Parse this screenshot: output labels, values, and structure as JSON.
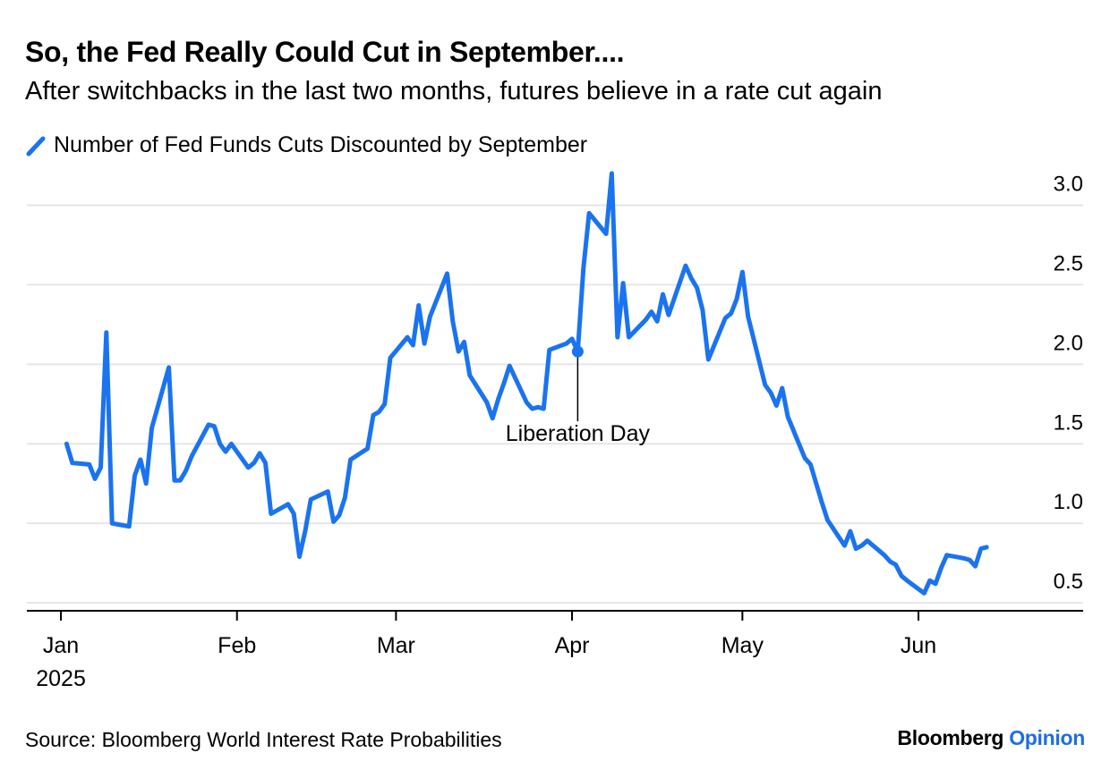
{
  "header": {
    "title": "So, the Fed Really Could Cut in September....",
    "subtitle": "After switchbacks in the last two months, futures believe in a rate cut again"
  },
  "legend": {
    "label": "Number of Fed Funds Cuts Discounted by September"
  },
  "footer": {
    "source": "Source: Bloomberg World Interest Rate Probabilities",
    "brand_name": "Bloomberg",
    "brand_suffix": "Opinion"
  },
  "colors": {
    "line": "#1a73f0",
    "grid": "#e6e6e6",
    "axis": "#000000",
    "brand_accent": "#1e6fe0"
  },
  "chart_data": {
    "type": "line",
    "series": [
      {
        "name": "Number of Fed Funds Cuts Discounted by September",
        "points": [
          [
            "2025-01-02",
            1.5
          ],
          [
            "2025-01-03",
            1.38
          ],
          [
            "2025-01-06",
            1.37
          ],
          [
            "2025-01-07",
            1.28
          ],
          [
            "2025-01-08",
            1.35
          ],
          [
            "2025-01-09",
            2.2
          ],
          [
            "2025-01-10",
            1.0
          ],
          [
            "2025-01-13",
            0.98
          ],
          [
            "2025-01-14",
            1.3
          ],
          [
            "2025-01-15",
            1.4
          ],
          [
            "2025-01-16",
            1.25
          ],
          [
            "2025-01-17",
            1.6
          ],
          [
            "2025-01-20",
            1.98
          ],
          [
            "2025-01-21",
            1.27
          ],
          [
            "2025-01-22",
            1.27
          ],
          [
            "2025-01-23",
            1.33
          ],
          [
            "2025-01-24",
            1.42
          ],
          [
            "2025-01-27",
            1.62
          ],
          [
            "2025-01-28",
            1.61
          ],
          [
            "2025-01-29",
            1.5
          ],
          [
            "2025-01-30",
            1.45
          ],
          [
            "2025-01-31",
            1.5
          ],
          [
            "2025-02-03",
            1.35
          ],
          [
            "2025-02-04",
            1.38
          ],
          [
            "2025-02-05",
            1.44
          ],
          [
            "2025-02-06",
            1.38
          ],
          [
            "2025-02-07",
            1.06
          ],
          [
            "2025-02-10",
            1.12
          ],
          [
            "2025-02-11",
            1.06
          ],
          [
            "2025-02-12",
            0.79
          ],
          [
            "2025-02-13",
            0.95
          ],
          [
            "2025-02-14",
            1.15
          ],
          [
            "2025-02-17",
            1.2
          ],
          [
            "2025-02-18",
            1.01
          ],
          [
            "2025-02-19",
            1.05
          ],
          [
            "2025-02-20",
            1.16
          ],
          [
            "2025-02-21",
            1.4
          ],
          [
            "2025-02-24",
            1.47
          ],
          [
            "2025-02-25",
            1.68
          ],
          [
            "2025-02-26",
            1.7
          ],
          [
            "2025-02-27",
            1.75
          ],
          [
            "2025-02-28",
            2.04
          ],
          [
            "2025-03-03",
            2.17
          ],
          [
            "2025-03-04",
            2.12
          ],
          [
            "2025-03-05",
            2.37
          ],
          [
            "2025-03-06",
            2.13
          ],
          [
            "2025-03-07",
            2.3
          ],
          [
            "2025-03-10",
            2.57
          ],
          [
            "2025-03-11",
            2.27
          ],
          [
            "2025-03-12",
            2.08
          ],
          [
            "2025-03-13",
            2.14
          ],
          [
            "2025-03-14",
            1.93
          ],
          [
            "2025-03-17",
            1.76
          ],
          [
            "2025-03-18",
            1.66
          ],
          [
            "2025-03-19",
            1.78
          ],
          [
            "2025-03-20",
            1.88
          ],
          [
            "2025-03-21",
            1.99
          ],
          [
            "2025-03-24",
            1.76
          ],
          [
            "2025-03-25",
            1.72
          ],
          [
            "2025-03-26",
            1.73
          ],
          [
            "2025-03-27",
            1.72
          ],
          [
            "2025-03-28",
            2.09
          ],
          [
            "2025-03-31",
            2.13
          ],
          [
            "2025-04-01",
            2.16
          ],
          [
            "2025-04-02",
            2.08
          ],
          [
            "2025-04-03",
            2.6
          ],
          [
            "2025-04-04",
            2.95
          ],
          [
            "2025-04-07",
            2.82
          ],
          [
            "2025-04-08",
            3.2
          ],
          [
            "2025-04-09",
            2.17
          ],
          [
            "2025-04-10",
            2.51
          ],
          [
            "2025-04-11",
            2.17
          ],
          [
            "2025-04-14",
            2.28
          ],
          [
            "2025-04-15",
            2.33
          ],
          [
            "2025-04-16",
            2.27
          ],
          [
            "2025-04-17",
            2.44
          ],
          [
            "2025-04-18",
            2.31
          ],
          [
            "2025-04-21",
            2.62
          ],
          [
            "2025-04-22",
            2.54
          ],
          [
            "2025-04-23",
            2.48
          ],
          [
            "2025-04-24",
            2.34
          ],
          [
            "2025-04-25",
            2.03
          ],
          [
            "2025-04-28",
            2.29
          ],
          [
            "2025-04-29",
            2.32
          ],
          [
            "2025-04-30",
            2.41
          ],
          [
            "2025-05-01",
            2.58
          ],
          [
            "2025-05-02",
            2.3
          ],
          [
            "2025-05-05",
            1.87
          ],
          [
            "2025-05-06",
            1.82
          ],
          [
            "2025-05-07",
            1.74
          ],
          [
            "2025-05-08",
            1.85
          ],
          [
            "2025-05-09",
            1.67
          ],
          [
            "2025-05-12",
            1.41
          ],
          [
            "2025-05-13",
            1.37
          ],
          [
            "2025-05-14",
            1.25
          ],
          [
            "2025-05-15",
            1.13
          ],
          [
            "2025-05-16",
            1.02
          ],
          [
            "2025-05-19",
            0.86
          ],
          [
            "2025-05-20",
            0.95
          ],
          [
            "2025-05-21",
            0.84
          ],
          [
            "2025-05-22",
            0.86
          ],
          [
            "2025-05-23",
            0.89
          ],
          [
            "2025-05-26",
            0.8
          ],
          [
            "2025-05-27",
            0.76
          ],
          [
            "2025-05-28",
            0.74
          ],
          [
            "2025-05-29",
            0.67
          ],
          [
            "2025-05-30",
            0.64
          ],
          [
            "2025-06-02",
            0.56
          ],
          [
            "2025-06-03",
            0.64
          ],
          [
            "2025-06-04",
            0.62
          ],
          [
            "2025-06-05",
            0.72
          ],
          [
            "2025-06-06",
            0.8
          ],
          [
            "2025-06-09",
            0.78
          ],
          [
            "2025-06-10",
            0.77
          ],
          [
            "2025-06-11",
            0.73
          ],
          [
            "2025-06-12",
            0.84
          ],
          [
            "2025-06-13",
            0.85
          ]
        ]
      }
    ],
    "x_ticks": [
      {
        "date": "2025-01-01",
        "label": "Jan",
        "sublabel": "2025"
      },
      {
        "date": "2025-02-01",
        "label": "Feb"
      },
      {
        "date": "2025-03-01",
        "label": "Mar"
      },
      {
        "date": "2025-04-01",
        "label": "Apr"
      },
      {
        "date": "2025-05-01",
        "label": "May"
      },
      {
        "date": "2025-06-01",
        "label": "Jun"
      }
    ],
    "xlim": [
      "2024-12-26",
      "2025-06-30"
    ],
    "y_ticks": [
      {
        "value": 0.5,
        "label": "0.5"
      },
      {
        "value": 1.0,
        "label": "1.0"
      },
      {
        "value": 1.5,
        "label": "1.5"
      },
      {
        "value": 2.0,
        "label": "2.0"
      },
      {
        "value": 2.5,
        "label": "2.5"
      },
      {
        "value": 3.0,
        "label": "3.0"
      }
    ],
    "ylim": [
      0.45,
      3.25
    ],
    "y_axis_side": "right",
    "grid": true,
    "legend_position": "top-left",
    "annotations": [
      {
        "date": "2025-04-02",
        "value": 2.08,
        "text": "Liberation Day"
      }
    ]
  }
}
